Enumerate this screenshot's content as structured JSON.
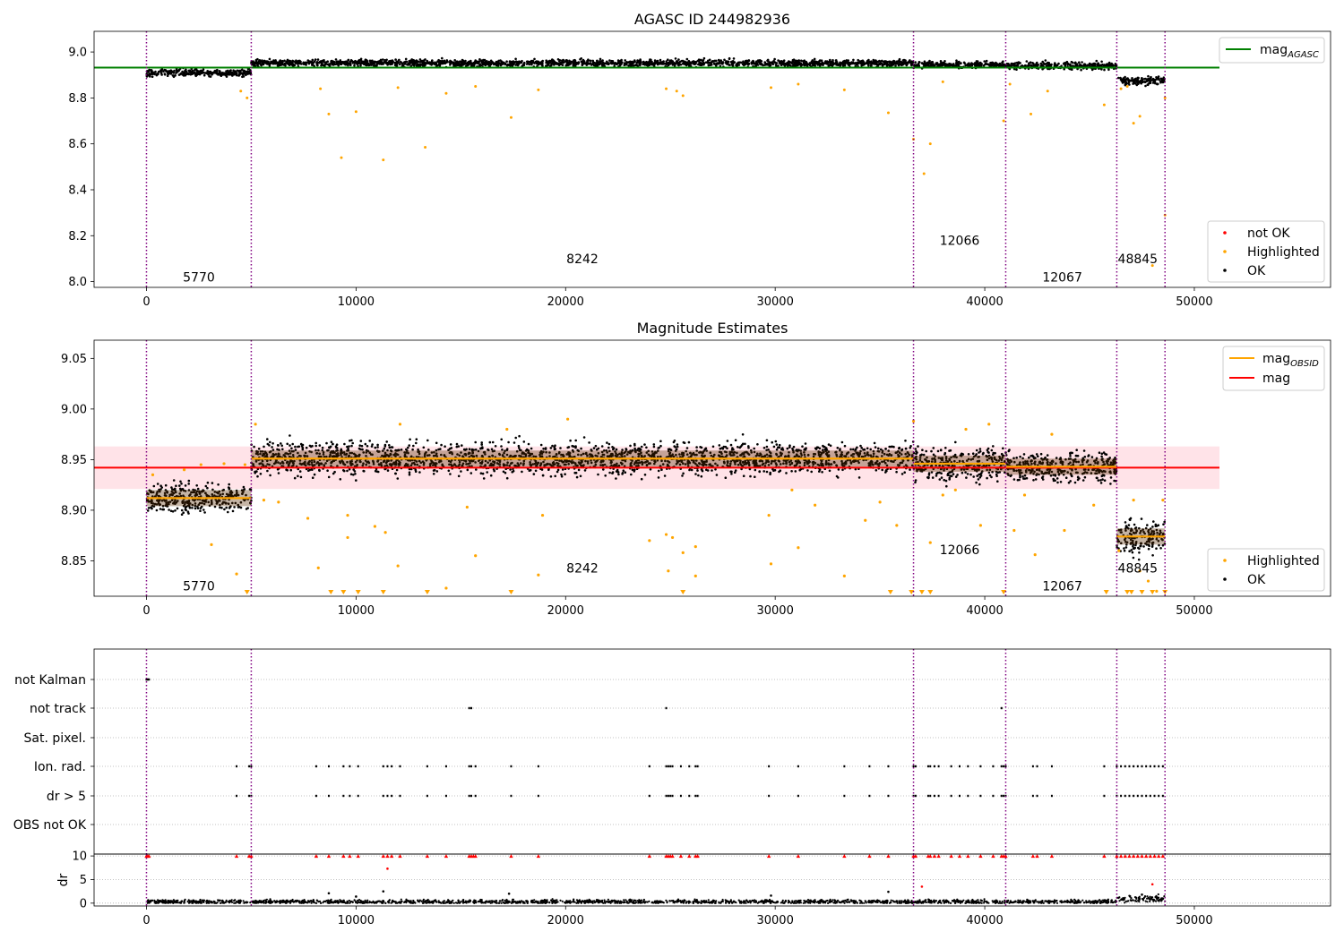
{
  "colors": {
    "ok": "#000000",
    "highlighted": "#ffa500",
    "not_ok": "#ff0000",
    "mag_agasc_line": "#008000",
    "mag_obsid_line": "#ffa500",
    "mag_line": "#ff0000",
    "mag_band": "#ffc0cb",
    "obs_boundary": "#800080",
    "grid": "#b0b0b0"
  },
  "chart_data": [
    {
      "type": "scatter",
      "title": "AGASC ID 244982936",
      "xlabel": "",
      "ylabel": "",
      "xlim": [
        -2500,
        56500
      ],
      "ylim": [
        7.975,
        9.09
      ],
      "xticks": [
        0,
        10000,
        20000,
        30000,
        40000,
        50000
      ],
      "yticks": [
        8.0,
        8.2,
        8.4,
        8.6,
        8.8,
        9.0
      ],
      "ytick_labels": [
        "8.0",
        "8.2",
        "8.4",
        "8.6",
        "8.8",
        "9.0"
      ],
      "grid": false,
      "legend_placements": [
        "top-right",
        "bottom-right"
      ],
      "mag_agasc": {
        "label": "mag",
        "subscript": "AGASC",
        "value": 8.932
      },
      "obs_boundaries": [
        0,
        5000,
        36600,
        41000,
        46300,
        48600
      ],
      "obsids": [
        {
          "label": "5770",
          "x": 2500,
          "y": 8.02
        },
        {
          "label": "8242",
          "x": 20800,
          "y": 8.1
        },
        {
          "label": "12066",
          "x": 38800,
          "y": 8.18
        },
        {
          "label": "12067",
          "x": 43700,
          "y": 8.02
        },
        {
          "label": "48845",
          "x": 47300,
          "y": 8.1
        }
      ],
      "bands": [
        {
          "x0": 0,
          "x1": 5000,
          "center": 8.91,
          "spread": 0.011
        },
        {
          "x0": 5000,
          "x1": 36600,
          "center": 8.952,
          "spread": 0.01
        },
        {
          "x0": 36600,
          "x1": 41000,
          "center": 8.945,
          "spread": 0.01
        },
        {
          "x0": 41000,
          "x1": 46300,
          "center": 8.94,
          "spread": 0.011
        },
        {
          "x0": 46300,
          "x1": 48600,
          "center": 8.875,
          "spread": 0.012
        }
      ],
      "highlighted_points": [
        [
          8300,
          8.84
        ],
        [
          8700,
          8.73
        ],
        [
          9300,
          8.54
        ],
        [
          10000,
          8.74
        ],
        [
          11300,
          8.53
        ],
        [
          12000,
          8.845
        ],
        [
          13300,
          8.585
        ],
        [
          14300,
          8.82
        ],
        [
          15700,
          8.85
        ],
        [
          17400,
          8.715
        ],
        [
          18700,
          8.835
        ],
        [
          24800,
          8.84
        ],
        [
          25300,
          8.83
        ],
        [
          25600,
          8.81
        ],
        [
          29800,
          8.845
        ],
        [
          31100,
          8.86
        ],
        [
          33300,
          8.835
        ],
        [
          35400,
          8.735
        ],
        [
          36600,
          8.62
        ],
        [
          37100,
          8.47
        ],
        [
          37400,
          8.6
        ],
        [
          38000,
          8.87
        ],
        [
          40900,
          8.7
        ],
        [
          41200,
          8.86
        ],
        [
          42200,
          8.73
        ],
        [
          43000,
          8.83
        ],
        [
          45700,
          8.77
        ],
        [
          46500,
          8.84
        ],
        [
          46800,
          8.85
        ],
        [
          47100,
          8.69
        ],
        [
          47400,
          8.72
        ],
        [
          48000,
          8.07
        ],
        [
          48600,
          8.29
        ],
        [
          48600,
          8.8
        ],
        [
          4500,
          8.83
        ],
        [
          4800,
          8.8
        ]
      ],
      "legend_right": [
        {
          "label": "not OK",
          "color": "#ff0000"
        },
        {
          "label": "Highlighted",
          "color": "#ffa500"
        },
        {
          "label": "OK",
          "color": "#000000"
        }
      ]
    },
    {
      "type": "scatter",
      "title": "Magnitude Estimates",
      "xlabel": "",
      "ylabel": "",
      "xlim": [
        -2500,
        56500
      ],
      "ylim": [
        8.815,
        9.068
      ],
      "xticks": [
        0,
        10000,
        20000,
        30000,
        40000,
        50000
      ],
      "yticks": [
        8.85,
        8.9,
        8.95,
        9.0,
        9.05
      ],
      "ytick_labels": [
        "8.85",
        "8.90",
        "8.95",
        "9.00",
        "9.05"
      ],
      "grid": false,
      "legend_placements": [
        "top-right",
        "bottom-right"
      ],
      "mag": {
        "label": "mag",
        "value": 8.942,
        "band": [
          8.921,
          8.963
        ],
        "x_end": 51100
      },
      "mag_obsid": {
        "label": "mag",
        "subscript": "OBSID",
        "segments": [
          {
            "x0": 0,
            "x1": 5000,
            "value": 8.912
          },
          {
            "x0": 5000,
            "x1": 36600,
            "value": 8.951
          },
          {
            "x0": 36600,
            "x1": 41000,
            "value": 8.946
          },
          {
            "x0": 41000,
            "x1": 46300,
            "value": 8.943
          },
          {
            "x0": 46300,
            "x1": 48600,
            "value": 8.874
          }
        ]
      },
      "obs_boundaries": [
        0,
        5000,
        36600,
        41000,
        46300,
        48600
      ],
      "obsids": [
        {
          "label": "5770",
          "x": 2500,
          "y": 8.825
        },
        {
          "label": "8242",
          "x": 20800,
          "y": 8.843
        },
        {
          "label": "12066",
          "x": 38800,
          "y": 8.861
        },
        {
          "label": "12067",
          "x": 43700,
          "y": 8.825
        },
        {
          "label": "48845",
          "x": 47300,
          "y": 8.843
        }
      ],
      "bands": [
        {
          "x0": 0,
          "x1": 5000,
          "center": 8.912,
          "spread": 0.01
        },
        {
          "x0": 5000,
          "x1": 36600,
          "center": 8.951,
          "spread": 0.011
        },
        {
          "x0": 36600,
          "x1": 41000,
          "center": 8.946,
          "spread": 0.011
        },
        {
          "x0": 41000,
          "x1": 46300,
          "center": 8.943,
          "spread": 0.011
        },
        {
          "x0": 46300,
          "x1": 48600,
          "center": 8.874,
          "spread": 0.012
        }
      ],
      "highlighted_points": [
        [
          300,
          8.935
        ],
        [
          1800,
          8.94
        ],
        [
          2600,
          8.945
        ],
        [
          3100,
          8.866
        ],
        [
          3700,
          8.946
        ],
        [
          4300,
          8.837
        ],
        [
          4700,
          8.945
        ],
        [
          5200,
          8.985
        ],
        [
          5600,
          8.91
        ],
        [
          6300,
          8.908
        ],
        [
          7700,
          8.892
        ],
        [
          8200,
          8.843
        ],
        [
          9600,
          8.895
        ],
        [
          9600,
          8.873
        ],
        [
          10900,
          8.884
        ],
        [
          11400,
          8.878
        ],
        [
          12000,
          8.845
        ],
        [
          12100,
          8.985
        ],
        [
          14300,
          8.823
        ],
        [
          15700,
          8.855
        ],
        [
          15300,
          8.903
        ],
        [
          17200,
          8.98
        ],
        [
          18700,
          8.836
        ],
        [
          18900,
          8.895
        ],
        [
          20100,
          8.99
        ],
        [
          24000,
          8.87
        ],
        [
          24800,
          8.876
        ],
        [
          25100,
          8.873
        ],
        [
          24900,
          8.84
        ],
        [
          25600,
          8.858
        ],
        [
          26200,
          8.864
        ],
        [
          26200,
          8.835
        ],
        [
          29800,
          8.847
        ],
        [
          29700,
          8.895
        ],
        [
          30800,
          8.92
        ],
        [
          31100,
          8.863
        ],
        [
          31900,
          8.905
        ],
        [
          33300,
          8.835
        ],
        [
          34300,
          8.89
        ],
        [
          35000,
          8.908
        ],
        [
          35800,
          8.885
        ],
        [
          36600,
          8.988
        ],
        [
          37400,
          8.868
        ],
        [
          38000,
          8.915
        ],
        [
          38600,
          8.92
        ],
        [
          39100,
          8.98
        ],
        [
          39800,
          8.885
        ],
        [
          40200,
          8.985
        ],
        [
          41400,
          8.88
        ],
        [
          41900,
          8.915
        ],
        [
          42400,
          8.856
        ],
        [
          43200,
          8.975
        ],
        [
          43800,
          8.88
        ],
        [
          45200,
          8.905
        ],
        [
          46400,
          8.86
        ],
        [
          47100,
          8.91
        ],
        [
          47400,
          8.84
        ],
        [
          47800,
          8.83
        ],
        [
          48200,
          8.82
        ],
        [
          48500,
          8.91
        ]
      ],
      "clipped_x": [
        4800,
        8800,
        9400,
        10100,
        11300,
        13400,
        17400,
        25600,
        35500,
        36500,
        37000,
        37400,
        40900,
        45800,
        46800,
        47000,
        47500,
        48000,
        48600
      ],
      "legend_right": [
        {
          "label": "Highlighted",
          "color": "#ffa500"
        },
        {
          "label": "OK",
          "color": "#000000"
        }
      ]
    },
    {
      "type": "scatter",
      "title": "",
      "xlabel": "",
      "ylabel": "",
      "xlim": [
        -2500,
        56500
      ],
      "xticks": [
        0,
        10000,
        20000,
        30000,
        40000,
        50000
      ],
      "grid": true,
      "obs_boundaries": [
        0,
        5000,
        36600,
        41000,
        46300,
        48600
      ],
      "flags": [
        "not Kalman",
        "not track",
        "Sat. pixel.",
        "Ion. rad.",
        "dr > 5",
        "OBS not OK"
      ],
      "flag_points": {
        "not Kalman": [
          0,
          60,
          120
        ],
        "not track": [
          15400,
          15500,
          24800,
          40800
        ],
        "Sat. pixel.": [],
        "Ion. rad.": [
          4300,
          4900,
          5000,
          8100,
          8700,
          9400,
          9700,
          10100,
          11300,
          11500,
          11700,
          12100,
          13400,
          14300,
          15400,
          15500,
          15700,
          17400,
          18700,
          24000,
          24800,
          24900,
          25000,
          25100,
          25500,
          25900,
          26200,
          26300,
          29700,
          31100,
          33300,
          34500,
          35400,
          36600,
          36700,
          37300,
          37400,
          37600,
          37800,
          38400,
          38800,
          39200,
          39800,
          40400,
          40800,
          40900,
          41000,
          42300,
          42500,
          43200,
          45700,
          46300,
          46500,
          46700,
          46900,
          47100,
          47300,
          47500,
          47700,
          47900,
          48100,
          48300,
          48500
        ],
        "dr > 5": [
          4300,
          4900,
          5000,
          8100,
          8700,
          9400,
          9700,
          10100,
          11300,
          11500,
          11700,
          12100,
          13400,
          14300,
          15400,
          15500,
          15700,
          17400,
          18700,
          24000,
          24800,
          24900,
          25000,
          25100,
          25500,
          25900,
          26200,
          26300,
          29700,
          31100,
          33300,
          34500,
          35400,
          36600,
          36700,
          37300,
          37400,
          37600,
          37800,
          38400,
          38800,
          39200,
          39800,
          40400,
          40800,
          40900,
          41000,
          42300,
          42500,
          43200,
          45700,
          46300,
          46500,
          46700,
          46900,
          47100,
          47300,
          47500,
          47700,
          47900,
          48100,
          48300,
          48500
        ],
        "OBS not OK": []
      }
    },
    {
      "type": "scatter",
      "title": "",
      "xlabel": "",
      "ylabel": "dr",
      "xlim": [
        -2500,
        56500
      ],
      "ylim": [
        -0.6,
        10.4
      ],
      "yticks": [
        0,
        5,
        10
      ],
      "ytick_labels": [
        "0",
        "5",
        "10"
      ],
      "xticks": [
        0,
        10000,
        20000,
        30000,
        40000,
        50000
      ],
      "xtick_labels": [
        "0",
        "10000",
        "20000",
        "30000",
        "40000",
        "50000"
      ],
      "grid": true,
      "obs_boundaries": [
        0,
        5000,
        36600,
        41000,
        46300,
        48600
      ],
      "capped_x": [
        0,
        60,
        120,
        4300,
        4900,
        5000,
        8100,
        8700,
        9400,
        9700,
        10100,
        11300,
        11500,
        11700,
        12100,
        13400,
        14300,
        15400,
        15500,
        15600,
        15700,
        17400,
        18700,
        24000,
        24800,
        24900,
        25000,
        25100,
        25500,
        25900,
        26200,
        26300,
        29700,
        31100,
        33300,
        34500,
        35400,
        36600,
        36700,
        37300,
        37400,
        37600,
        37800,
        38400,
        38800,
        39200,
        39800,
        40400,
        40800,
        40900,
        41000,
        42300,
        42500,
        43200,
        45700,
        46300,
        46500,
        46700,
        46900,
        47100,
        47300,
        47500,
        47700,
        47900,
        48100,
        48300,
        48500
      ],
      "outliers": [
        {
          "x": 11500,
          "y": 7.3,
          "status": "not_ok"
        },
        {
          "x": 37000,
          "y": 3.5,
          "status": "not_ok"
        },
        {
          "x": 48000,
          "y": 4.0,
          "status": "not_ok"
        },
        {
          "x": 8700,
          "y": 2.1,
          "status": "ok"
        },
        {
          "x": 10000,
          "y": 1.4,
          "status": "ok"
        },
        {
          "x": 11300,
          "y": 2.5,
          "status": "ok"
        },
        {
          "x": 17300,
          "y": 2.0,
          "status": "ok"
        },
        {
          "x": 29800,
          "y": 1.6,
          "status": "ok"
        },
        {
          "x": 35400,
          "y": 2.4,
          "status": "ok"
        },
        {
          "x": 47500,
          "y": 1.8,
          "status": "ok"
        }
      ],
      "baseline": [
        {
          "x0": 0,
          "x1": 46300,
          "level": 0.3,
          "spread": 0.3
        },
        {
          "x0": 46300,
          "x1": 48600,
          "level": 0.9,
          "spread": 0.5
        }
      ]
    }
  ]
}
